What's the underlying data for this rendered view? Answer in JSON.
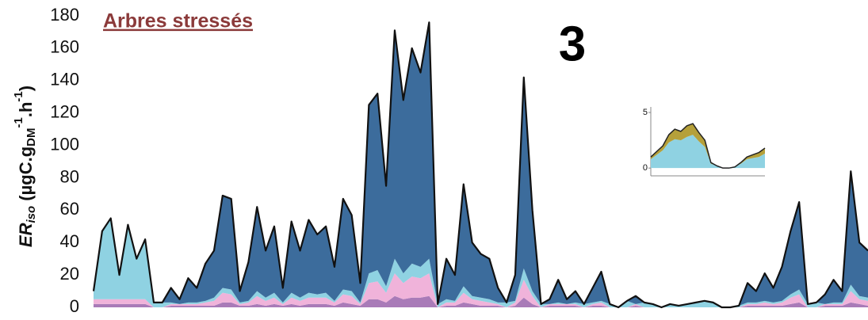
{
  "chart_data": [
    {
      "type": "stacked_area",
      "title": "Arbres stressés",
      "panel_label": "3",
      "ylabel": [
        "ER",
        "iso",
        " (µgC.g",
        "DM",
        "-1",
        ".h",
        "-1",
        ")"
      ],
      "categories": [
        null,
        null,
        null,
        null,
        null,
        null,
        null,
        null,
        null,
        null,
        null,
        null,
        null,
        null,
        null,
        null,
        null,
        null,
        null,
        null,
        null,
        null,
        null,
        null,
        null,
        null,
        null,
        null,
        null,
        null,
        null,
        null,
        null,
        null,
        null,
        null,
        null,
        null,
        null,
        null,
        null,
        null,
        null,
        null,
        null,
        null,
        null,
        null,
        null,
        null,
        null,
        null,
        null,
        null,
        null,
        null,
        null,
        null,
        null,
        null,
        null,
        null,
        null,
        null,
        null,
        null,
        null,
        null,
        null,
        null,
        null,
        null,
        null,
        null,
        null,
        null,
        null,
        null,
        null,
        null,
        null,
        null,
        null,
        null,
        null,
        null,
        null,
        null,
        null,
        null,
        null
      ],
      "ylim": [
        0,
        180
      ],
      "yticks": [
        0,
        20,
        40,
        60,
        80,
        100,
        120,
        140,
        160,
        180
      ],
      "outline_color": "#111111",
      "series": [
        {
          "color": "#a97bb8",
          "values": [
            2,
            2,
            2,
            2,
            2,
            2,
            2,
            0,
            0,
            1,
            1,
            1,
            1,
            1,
            1,
            3,
            3,
            1,
            1,
            2,
            1,
            2,
            1,
            2,
            1,
            2,
            2,
            2,
            1,
            3,
            2,
            1,
            5,
            5,
            3,
            7,
            5,
            6,
            6,
            7,
            0,
            1,
            1,
            3,
            2,
            1,
            1,
            1,
            0,
            1,
            6,
            2,
            0,
            1,
            1,
            1,
            1,
            0,
            1,
            1,
            0,
            0,
            0,
            1,
            0,
            0,
            0,
            0,
            0,
            0,
            0,
            0,
            0,
            0,
            0,
            0,
            1,
            1,
            1,
            1,
            1,
            2,
            3,
            0,
            0,
            1,
            1,
            1,
            3,
            2,
            1
          ]
        },
        {
          "color": "#f0b3da",
          "values": [
            3,
            3,
            3,
            3,
            3,
            3,
            3,
            0,
            0,
            1,
            1,
            1,
            1,
            2,
            3,
            6,
            5,
            1,
            2,
            5,
            3,
            4,
            1,
            4,
            3,
            4,
            4,
            4,
            2,
            5,
            5,
            1,
            10,
            11,
            6,
            14,
            10,
            13,
            12,
            14,
            0,
            2,
            2,
            6,
            3,
            3,
            2,
            1,
            0,
            2,
            11,
            5,
            0,
            1,
            1,
            1,
            1,
            0,
            1,
            2,
            0,
            0,
            0,
            1,
            0,
            0,
            0,
            0,
            0,
            0,
            0,
            0,
            0,
            0,
            0,
            0,
            1,
            1,
            2,
            1,
            2,
            4,
            5,
            0,
            0,
            1,
            1,
            1,
            7,
            3,
            3
          ]
        },
        {
          "color": "#8fd2e2",
          "values": [
            5,
            42,
            50,
            15,
            46,
            25,
            37,
            3,
            3,
            1,
            0,
            1,
            1,
            1,
            2,
            3,
            3,
            1,
            1,
            3,
            2,
            3,
            1,
            3,
            2,
            3,
            2,
            3,
            1,
            3,
            3,
            1,
            6,
            7,
            4,
            9,
            6,
            8,
            7,
            9,
            2,
            2,
            1,
            4,
            2,
            2,
            2,
            1,
            3,
            1,
            7,
            3,
            2,
            0,
            1,
            0,
            1,
            2,
            1,
            1,
            2,
            0,
            4,
            0,
            3,
            2,
            0,
            2,
            1,
            2,
            3,
            4,
            3,
            0,
            0,
            1,
            1,
            1,
            1,
            1,
            1,
            2,
            3,
            2,
            3,
            0,
            1,
            1,
            4,
            2,
            2
          ]
        },
        {
          "color": "#3c6c9c",
          "values": [
            0,
            0,
            0,
            0,
            0,
            0,
            0,
            0,
            0,
            9,
            3,
            15,
            9,
            23,
            29,
            57,
            56,
            7,
            24,
            52,
            29,
            41,
            9,
            44,
            29,
            45,
            37,
            41,
            21,
            56,
            47,
            12,
            104,
            109,
            62,
            141,
            107,
            133,
            120,
            146,
            0,
            25,
            16,
            63,
            33,
            27,
            25,
            9,
            0,
            16,
            118,
            50,
            0,
            3,
            14,
            3,
            7,
            0,
            9,
            18,
            0,
            0,
            0,
            5,
            0,
            0,
            0,
            0,
            0,
            0,
            0,
            0,
            0,
            0,
            0,
            0,
            12,
            7,
            17,
            9,
            21,
            39,
            54,
            0,
            0,
            6,
            14,
            7,
            70,
            33,
            29
          ]
        }
      ]
    },
    {
      "type": "stacked_area",
      "categories": [
        null,
        null,
        null,
        null,
        null,
        null,
        null,
        null,
        null,
        null,
        null,
        null,
        null,
        null,
        null,
        null,
        null,
        null,
        null,
        null
      ],
      "ylim": [
        -0.7,
        5.5
      ],
      "yticks": [
        0,
        5
      ],
      "outline_color": "#222222",
      "series": [
        {
          "color": "#8fd2e2",
          "values": [
            0.8,
            1.2,
            1.6,
            2.3,
            2.6,
            2.5,
            2.8,
            3,
            2.4,
            1.9,
            0.4,
            0.2,
            0,
            0,
            0.1,
            0.4,
            0.8,
            0.9,
            1,
            1.3
          ]
        },
        {
          "color": "#b5a03a",
          "values": [
            0.2,
            0.3,
            0.4,
            0.7,
            0.9,
            0.8,
            1,
            1,
            0.8,
            0.6,
            0.1,
            0,
            0,
            0,
            0,
            0.1,
            0.2,
            0.3,
            0.4,
            0.5
          ]
        }
      ]
    }
  ]
}
